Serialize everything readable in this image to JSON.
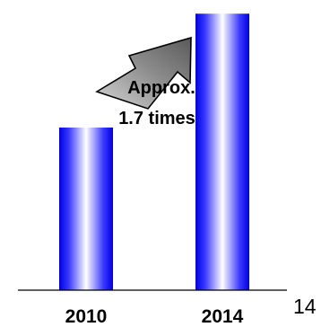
{
  "chart_data": {
    "type": "bar",
    "categories": [
      "2010",
      "2014"
    ],
    "values": [
      1.0,
      1.7
    ],
    "ylim": [
      0,
      1.74
    ],
    "title": "",
    "xlabel": "",
    "ylabel": "",
    "grid": false,
    "bar_color": "#1a1aff",
    "annotation": {
      "line1": "Approx.",
      "line2": "1.7 times",
      "arrow_color": "#7a7a7a"
    }
  },
  "page_number": "14"
}
